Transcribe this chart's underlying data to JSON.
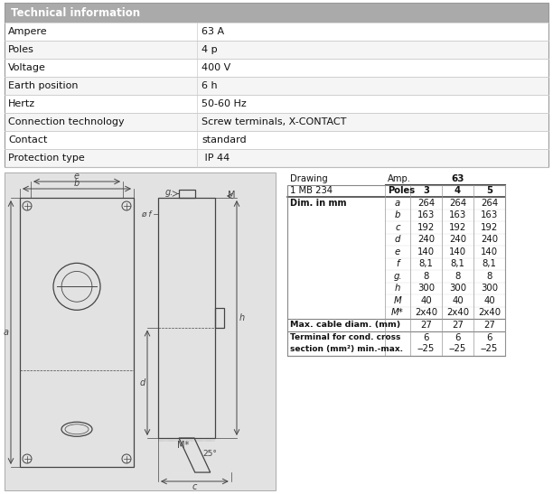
{
  "title": "Technical information",
  "title_bg": "#aaaaaa",
  "row_bg_even": "#ffffff",
  "row_bg_odd": "#f5f5f5",
  "tech_rows": [
    [
      "Ampere",
      "63 A"
    ],
    [
      "Poles",
      "4 p"
    ],
    [
      "Voltage",
      "400 V"
    ],
    [
      "Earth position",
      "6 h"
    ],
    [
      "Hertz",
      "50-60 Hz"
    ],
    [
      "Connection technology",
      "Screw terminals, X-CONTACT"
    ],
    [
      "Contact",
      "standard"
    ],
    [
      "Protection type",
      " IP 44"
    ]
  ],
  "dim_rows": [
    [
      "Dim. in mm",
      "a",
      "264",
      "264",
      "264"
    ],
    [
      "",
      "b",
      "163",
      "163",
      "163"
    ],
    [
      "",
      "c",
      "192",
      "192",
      "192"
    ],
    [
      "",
      "d",
      "240",
      "240",
      "240"
    ],
    [
      "",
      "e",
      "140",
      "140",
      "140"
    ],
    [
      "",
      "f",
      "8,1",
      "8,1",
      "8,1"
    ],
    [
      "",
      "g.",
      "8",
      "8",
      "8"
    ],
    [
      "",
      "h",
      "300",
      "300",
      "300"
    ],
    [
      "",
      "M",
      "40",
      "40",
      "40"
    ],
    [
      "",
      "M*",
      "2x40",
      "2x40",
      "2x40"
    ]
  ],
  "drawing_bg": "#e2e2e2",
  "line_color": "#444444",
  "text_color": "#111111",
  "table_border": "#999999",
  "row_line": "#cccccc"
}
